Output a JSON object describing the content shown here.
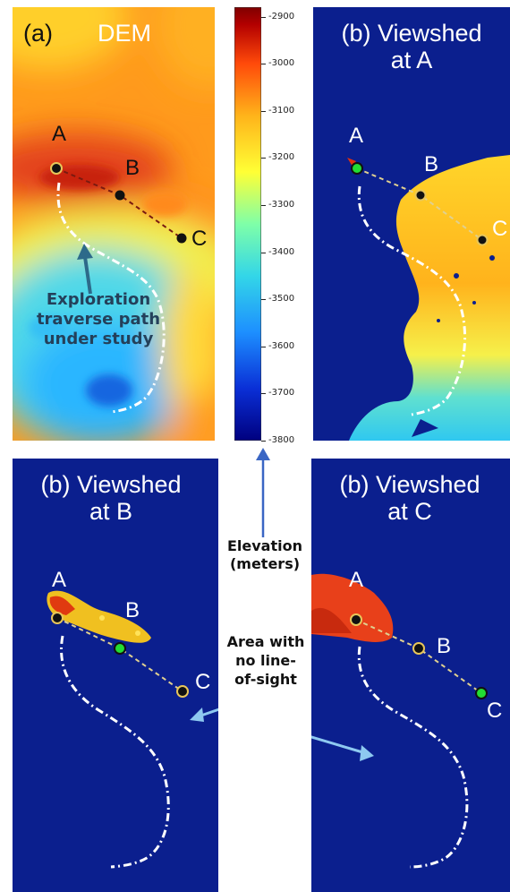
{
  "panels": {
    "a": {
      "tag": "(a)",
      "title": "DEM"
    },
    "b_at_a": {
      "title_line1": "(b) Viewshed",
      "title_line2": "at  A"
    },
    "b_at_b": {
      "title_line1": "(b) Viewshed",
      "title_line2": "at  B"
    },
    "b_at_c": {
      "title_line1": "(b) Viewshed",
      "title_line2": "at  C"
    }
  },
  "points": {
    "a": "A",
    "b": "B",
    "c": "C"
  },
  "annotations": {
    "traverse": [
      "Exploration",
      "traverse path",
      "under study"
    ],
    "elevation": [
      "Elevation",
      "(meters)"
    ],
    "no_los": [
      "Area with",
      "no line-",
      "of-sight"
    ]
  },
  "colorbar": {
    "ticks": [
      "-2900",
      "-3000",
      "-3100",
      "-3200",
      "-3300",
      "-3400",
      "-3500",
      "-3600",
      "-3700",
      "-3800"
    ],
    "min": -3800,
    "max": -2880,
    "colors": [
      "#00007f",
      "#0a2fd6",
      "#1d8fff",
      "#33d6e8",
      "#7fffa8",
      "#ffff35",
      "#ffb31a",
      "#ff4a0a",
      "#b30000",
      "#7f0000"
    ]
  }
}
